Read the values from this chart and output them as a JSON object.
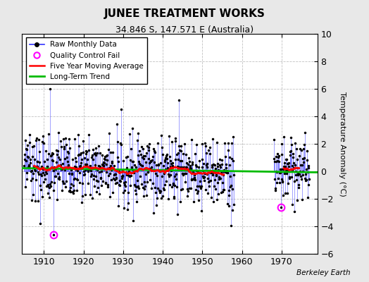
{
  "title": "JUNEE TREATMENT WORKS",
  "subtitle": "34.846 S, 147.571 E (Australia)",
  "ylabel": "Temperature Anomaly (°C)",
  "credit": "Berkeley Earth",
  "xlim": [
    1904.5,
    1979
  ],
  "ylim": [
    -6,
    10
  ],
  "yticks": [
    -6,
    -4,
    -2,
    0,
    2,
    4,
    6,
    8,
    10
  ],
  "xticks": [
    1910,
    1920,
    1930,
    1940,
    1950,
    1960,
    1970
  ],
  "bg_color": "#e8e8e8",
  "plot_bg_color": "#ffffff",
  "raw_color": "#3333ff",
  "ma_color": "#ff0000",
  "trend_color": "#00bb00",
  "qc_color": "#ff00ff",
  "grid_color": "#bbbbbb",
  "seed": 37
}
